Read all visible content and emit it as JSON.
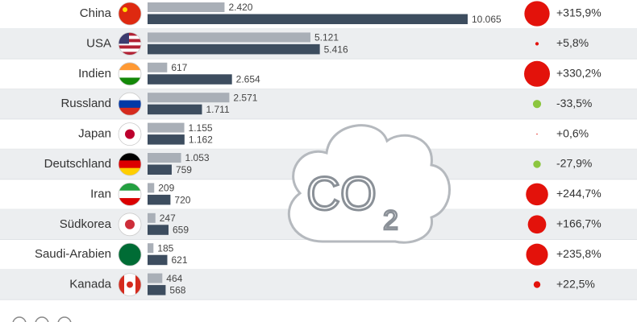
{
  "chart_data": {
    "type": "bar",
    "orientation": "horizontal",
    "categories": [
      "China",
      "USA",
      "Indien",
      "Russland",
      "Japan",
      "Deutschland",
      "Iran",
      "Südkorea",
      "Saudi-Arabien",
      "Kanada"
    ],
    "series": [
      {
        "color": "#a9afb7",
        "values": [
          2420,
          5121,
          617,
          2571,
          1155,
          1053,
          209,
          247,
          185,
          464
        ],
        "value_labels": [
          "2.420",
          "5.121",
          "617",
          "2.571",
          "1.155",
          "1.053",
          "209",
          "247",
          "185",
          "464"
        ]
      },
      {
        "color": "#3d4d5f",
        "values": [
          10065,
          5416,
          2654,
          1711,
          1162,
          759,
          720,
          659,
          621,
          568
        ],
        "value_labels": [
          "10.065",
          "5.416",
          "2.654",
          "1.711",
          "1.162",
          "759",
          "720",
          "659",
          "621",
          "568"
        ]
      }
    ],
    "change": {
      "increase_color": "#e3120b",
      "decrease_color": "#8cc63f",
      "values": [
        315.9,
        5.8,
        330.2,
        -33.5,
        0.6,
        -27.9,
        244.7,
        166.7,
        235.8,
        22.5
      ],
      "value_labels": [
        "+315,9%",
        "+5,8%",
        "+330,2%",
        "-33,5%",
        "+0,6%",
        "-27,9%",
        "+244,7%",
        "+166,7%",
        "+235,8%",
        "+22,5%"
      ]
    },
    "illustration": {
      "text": "CO",
      "subscript": "2"
    }
  }
}
